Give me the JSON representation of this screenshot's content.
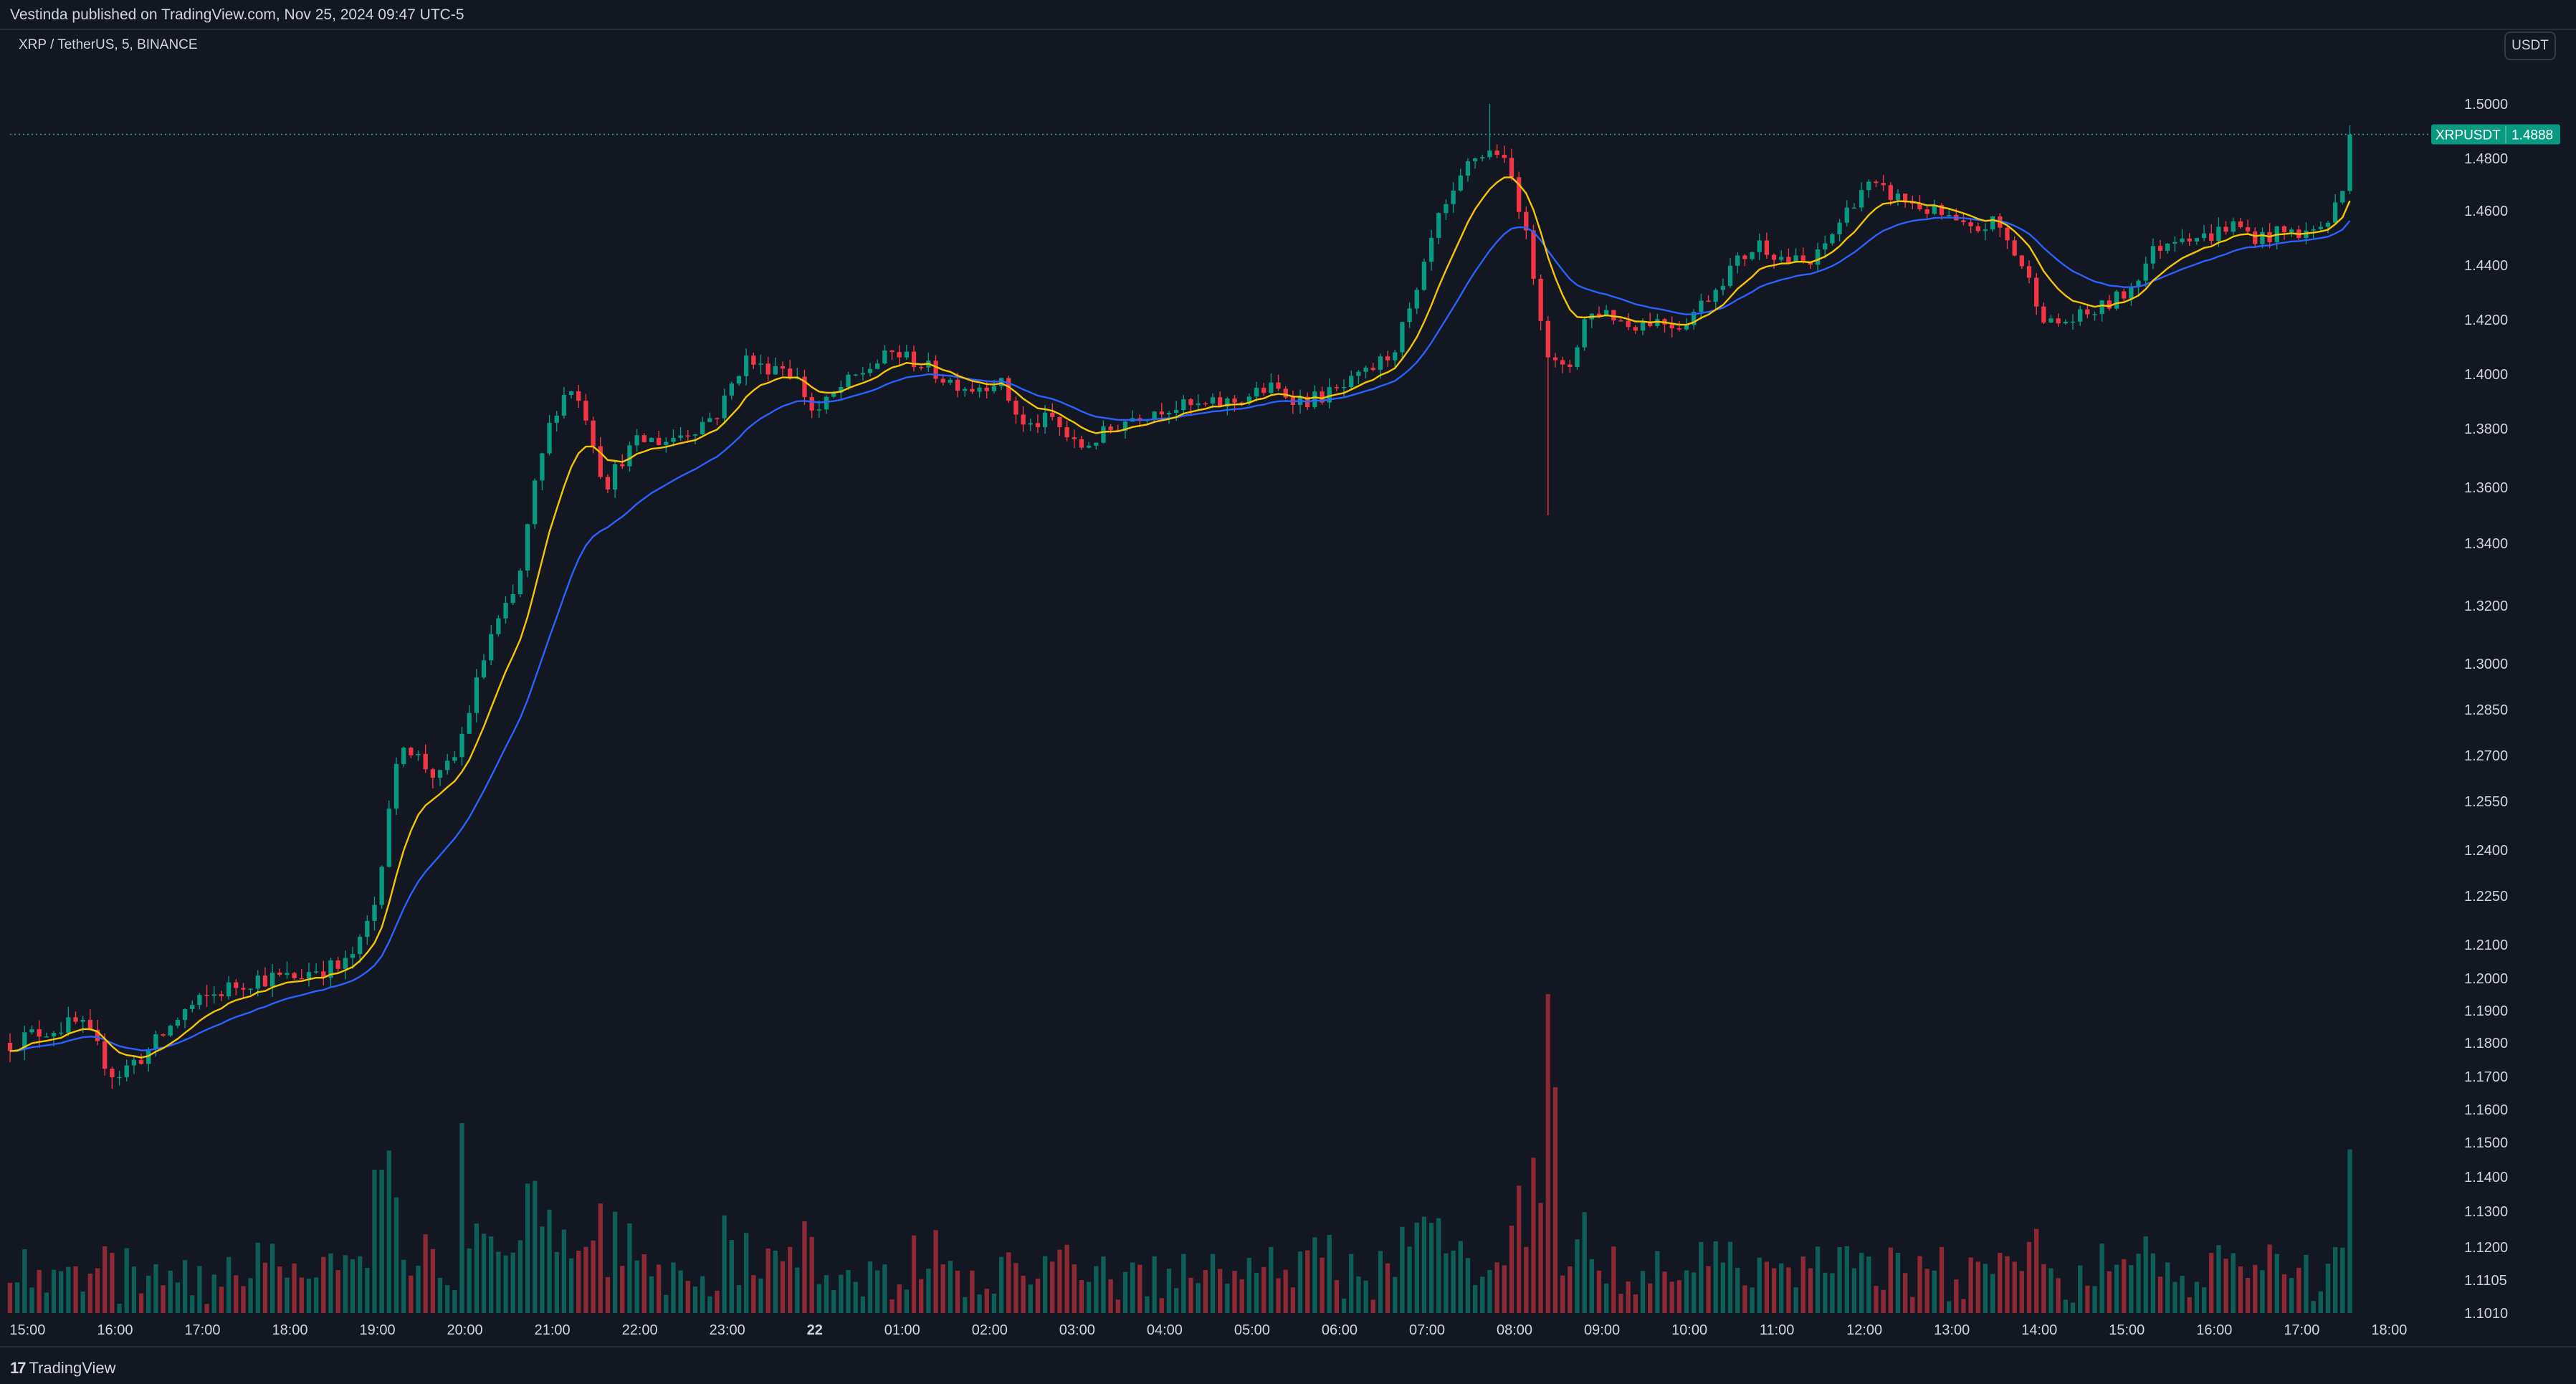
{
  "header": {
    "published": "Vestinda published on TradingView.com, Nov 25, 2024 09:47 UTC-5"
  },
  "symbol": {
    "title": "XRP / TetherUS, 5, BINANCE",
    "currency_button": "USDT",
    "last_price_tag_name": "XRPUSDT",
    "last_price_tag_value": "1.4888"
  },
  "footer": {
    "logo_mark": "17",
    "logo_text": "TradingView"
  },
  "colors": {
    "background": "#131722",
    "up": "#26a69a",
    "down": "#ef5350",
    "up_candle": "#089981",
    "down_candle": "#f23645",
    "ma_fast": "#f7c600",
    "ma_slow": "#2962ff",
    "grid": "#2a2e39"
  },
  "chart_data": {
    "type": "candlestick",
    "title": "XRP / TetherUS, 5, BINANCE",
    "y_scale": "piecewise (log-like)",
    "y_ticks": [
      {
        "value": 1.5,
        "label": "1.5000"
      },
      {
        "value": 1.48,
        "label": "1.4800"
      },
      {
        "value": 1.46,
        "label": "1.4600"
      },
      {
        "value": 1.44,
        "label": "1.4400"
      },
      {
        "value": 1.42,
        "label": "1.4200"
      },
      {
        "value": 1.4,
        "label": "1.4000"
      },
      {
        "value": 1.38,
        "label": "1.3800"
      },
      {
        "value": 1.36,
        "label": "1.3600"
      },
      {
        "value": 1.34,
        "label": "1.3400"
      },
      {
        "value": 1.32,
        "label": "1.3200"
      },
      {
        "value": 1.3,
        "label": "1.3000"
      },
      {
        "value": 1.285,
        "label": "1.2850"
      },
      {
        "value": 1.27,
        "label": "1.2700"
      },
      {
        "value": 1.255,
        "label": "1.2550"
      },
      {
        "value": 1.24,
        "label": "1.2400"
      },
      {
        "value": 1.225,
        "label": "1.2250"
      },
      {
        "value": 1.21,
        "label": "1.2100"
      },
      {
        "value": 1.2,
        "label": "1.2000"
      },
      {
        "value": 1.19,
        "label": "1.1900"
      },
      {
        "value": 1.18,
        "label": "1.1800"
      },
      {
        "value": 1.17,
        "label": "1.1700"
      },
      {
        "value": 1.16,
        "label": "1.1600"
      },
      {
        "value": 1.15,
        "label": "1.1500"
      },
      {
        "value": 1.14,
        "label": "1.1400"
      },
      {
        "value": 1.13,
        "label": "1.1300"
      },
      {
        "value": 1.12,
        "label": "1.1200"
      },
      {
        "value": 1.1105,
        "label": "1.1105"
      },
      {
        "value": 1.101,
        "label": "1.1010"
      }
    ],
    "x_ticks": [
      {
        "time": 15.0,
        "label": "15:00"
      },
      {
        "time": 16.0,
        "label": "16:00"
      },
      {
        "time": 17.0,
        "label": "17:00"
      },
      {
        "time": 18.0,
        "label": "18:00"
      },
      {
        "time": 19.0,
        "label": "19:00"
      },
      {
        "time": 20.0,
        "label": "20:00"
      },
      {
        "time": 21.0,
        "label": "21:00"
      },
      {
        "time": 22.0,
        "label": "22:00"
      },
      {
        "time": 23.0,
        "label": "23:00"
      },
      {
        "time": 24.0,
        "label": "22"
      },
      {
        "time": 25.0,
        "label": "01:00"
      },
      {
        "time": 26.0,
        "label": "02:00"
      },
      {
        "time": 27.0,
        "label": "03:00"
      },
      {
        "time": 28.0,
        "label": "04:00"
      },
      {
        "time": 29.0,
        "label": "05:00"
      },
      {
        "time": 30.0,
        "label": "06:00"
      },
      {
        "time": 31.0,
        "label": "07:00"
      },
      {
        "time": 32.0,
        "label": "08:00"
      },
      {
        "time": 33.0,
        "label": "09:00"
      },
      {
        "time": 34.0,
        "label": "10:00"
      },
      {
        "time": 35.0,
        "label": "11:00"
      },
      {
        "time": 36.0,
        "label": "12:00"
      },
      {
        "time": 37.0,
        "label": "13:00"
      },
      {
        "time": 38.0,
        "label": "14:00"
      },
      {
        "time": 39.0,
        "label": "15:00"
      },
      {
        "time": 40.0,
        "label": "16:00"
      },
      {
        "time": 41.0,
        "label": "17:00"
      },
      {
        "time": 42.0,
        "label": "18:00"
      }
    ],
    "x_range_hours": [
      14.8,
      42.3
    ],
    "y_range": [
      1.101,
      1.5
    ],
    "bar_interval_minutes": 5,
    "last_price": 1.4888,
    "price_path": [
      [
        14.8,
        1.18
      ],
      [
        15.2,
        1.184
      ],
      [
        15.6,
        1.186
      ],
      [
        16.0,
        1.17
      ],
      [
        16.4,
        1.178
      ],
      [
        16.8,
        1.19
      ],
      [
        17.2,
        1.196
      ],
      [
        17.6,
        1.2
      ],
      [
        18.0,
        1.2
      ],
      [
        18.3,
        1.203
      ],
      [
        18.6,
        1.203
      ],
      [
        18.8,
        1.21
      ],
      [
        19.0,
        1.225
      ],
      [
        19.1,
        1.25
      ],
      [
        19.3,
        1.275
      ],
      [
        19.5,
        1.268
      ],
      [
        19.7,
        1.262
      ],
      [
        19.9,
        1.27
      ],
      [
        20.1,
        1.29
      ],
      [
        20.3,
        1.31
      ],
      [
        20.6,
        1.325
      ],
      [
        20.8,
        1.36
      ],
      [
        21.0,
        1.385
      ],
      [
        21.2,
        1.396
      ],
      [
        21.4,
        1.384
      ],
      [
        21.6,
        1.36
      ],
      [
        21.8,
        1.37
      ],
      [
        22.0,
        1.376
      ],
      [
        22.3,
        1.376
      ],
      [
        22.6,
        1.38
      ],
      [
        22.9,
        1.386
      ],
      [
        23.2,
        1.406
      ],
      [
        23.4,
        1.402
      ],
      [
        23.6,
        1.404
      ],
      [
        23.8,
        1.398
      ],
      [
        24.0,
        1.385
      ],
      [
        24.3,
        1.395
      ],
      [
        24.6,
        1.402
      ],
      [
        24.9,
        1.408
      ],
      [
        25.2,
        1.404
      ],
      [
        25.5,
        1.398
      ],
      [
        25.8,
        1.395
      ],
      [
        26.1,
        1.398
      ],
      [
        26.4,
        1.38
      ],
      [
        26.7,
        1.384
      ],
      [
        27.0,
        1.373
      ],
      [
        27.3,
        1.378
      ],
      [
        27.6,
        1.384
      ],
      [
        28.0,
        1.388
      ],
      [
        28.4,
        1.388
      ],
      [
        28.8,
        1.39
      ],
      [
        29.2,
        1.395
      ],
      [
        29.6,
        1.39
      ],
      [
        30.0,
        1.394
      ],
      [
        30.3,
        1.4
      ],
      [
        30.6,
        1.408
      ],
      [
        30.9,
        1.43
      ],
      [
        31.1,
        1.455
      ],
      [
        31.3,
        1.465
      ],
      [
        31.5,
        1.48
      ],
      [
        31.8,
        1.483
      ],
      [
        32.0,
        1.47
      ],
      [
        32.2,
        1.44
      ],
      [
        32.4,
        1.405
      ],
      [
        32.6,
        1.4
      ],
      [
        32.8,
        1.42
      ],
      [
        33.0,
        1.424
      ],
      [
        33.3,
        1.418
      ],
      [
        33.6,
        1.42
      ],
      [
        33.9,
        1.418
      ],
      [
        34.2,
        1.428
      ],
      [
        34.5,
        1.44
      ],
      [
        34.8,
        1.448
      ],
      [
        35.1,
        1.442
      ],
      [
        35.4,
        1.44
      ],
      [
        35.7,
        1.455
      ],
      [
        36.0,
        1.47
      ],
      [
        36.3,
        1.466
      ],
      [
        36.6,
        1.462
      ],
      [
        36.9,
        1.458
      ],
      [
        37.2,
        1.452
      ],
      [
        37.5,
        1.456
      ],
      [
        37.8,
        1.44
      ],
      [
        38.1,
        1.418
      ],
      [
        38.4,
        1.42
      ],
      [
        38.7,
        1.424
      ],
      [
        39.0,
        1.43
      ],
      [
        39.3,
        1.445
      ],
      [
        39.6,
        1.452
      ],
      [
        39.9,
        1.45
      ],
      [
        40.2,
        1.455
      ],
      [
        40.5,
        1.45
      ],
      [
        40.8,
        1.452
      ],
      [
        41.1,
        1.452
      ],
      [
        41.3,
        1.456
      ],
      [
        41.5,
        1.47
      ],
      [
        41.6,
        1.489
      ]
    ],
    "series": [
      {
        "name": "MA fast",
        "color": "#f7c600"
      },
      {
        "name": "MA slow",
        "color": "#2962ff"
      }
    ]
  }
}
